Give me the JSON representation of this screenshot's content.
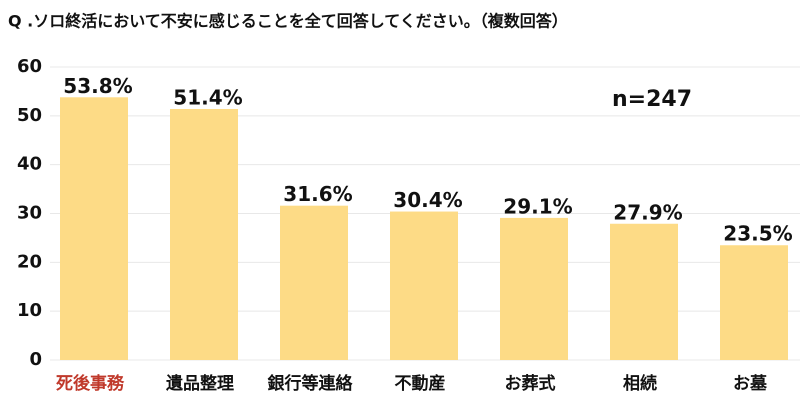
{
  "chart_data": {
    "type": "bar",
    "title": "Q .ソロ終活において不安に感じることを全て回答してください。（複数回答）",
    "annotation": "n=247",
    "categories": [
      "死後事務",
      "遺品整理",
      "銀行等連絡",
      "不動産",
      "お葬式",
      "相続",
      "お墓"
    ],
    "category_colors": [
      "#c0392b",
      "#111111",
      "#111111",
      "#111111",
      "#111111",
      "#111111",
      "#111111"
    ],
    "values": [
      53.8,
      51.4,
      31.6,
      30.4,
      29.1,
      27.9,
      23.5
    ],
    "value_labels": [
      "53.8%",
      "51.4%",
      "31.6%",
      "30.4%",
      "29.1%",
      "27.9%",
      "23.5%"
    ],
    "color": "#fddb86",
    "ylim": [
      0,
      60
    ],
    "yticks": [
      0,
      10,
      20,
      30,
      40,
      50,
      60
    ],
    "grid": true
  }
}
